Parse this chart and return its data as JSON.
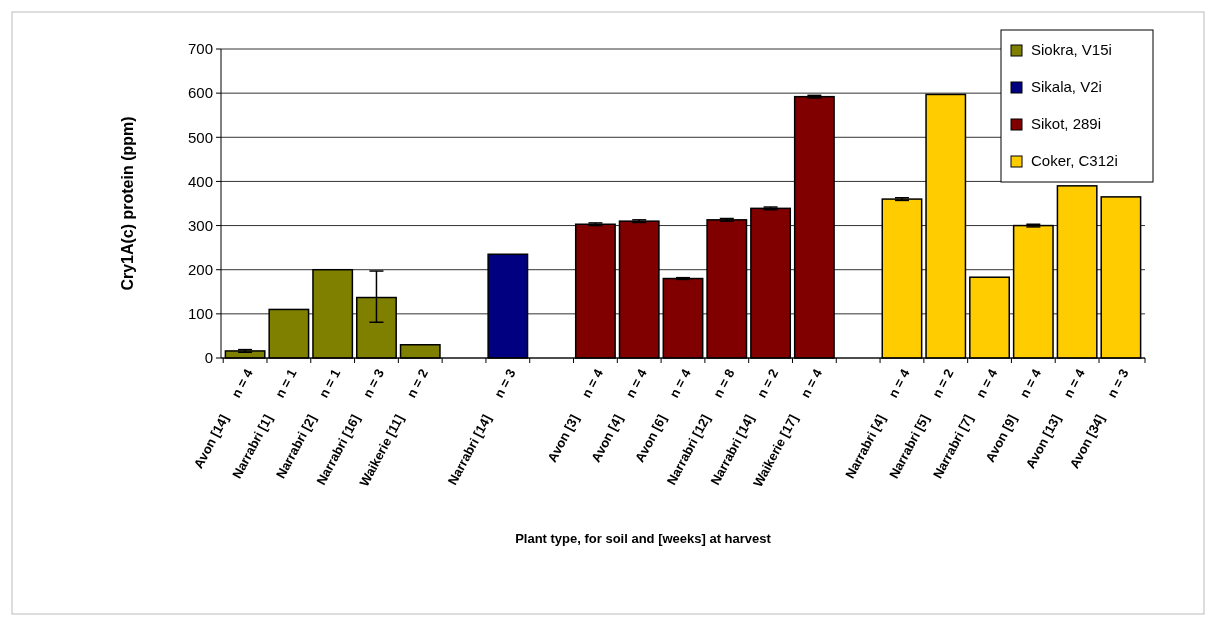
{
  "chart_data": {
    "type": "bar",
    "ylabel": "Cry1A(c) protein (ppm)",
    "xlabel": "Plant type, for soil and [weeks] at harvest",
    "categories": [
      "Avon [14]\nn = 4",
      "Narrabri [1]\nn = 1",
      "Narrabri [2]\nn = 1",
      "Narrabri [16]\nn = 3",
      "Waikerie [11]\nn = 2",
      null,
      "Narrabri [14]\nn = 3",
      null,
      "Avon [3]\nn = 4",
      "Avon [4]\nn = 4",
      "Avon [6]\nn = 4",
      "Narrabri [12]\nn = 8",
      "Narrabri [14]\nn = 2",
      "Waikerie [17]\nn = 4",
      null,
      "Narrabri [4]\nn = 4",
      "Narrabri [5]\nn = 2",
      "Narrabri [7]\nn = 4",
      "Avon [9]\nn = 4",
      "Avon [13]\nn = 4",
      "Avon [34]\nn = 3"
    ],
    "series": [
      {
        "name": "Siokra, V15i",
        "color": "#808000",
        "values": [
          16,
          110,
          200,
          137,
          30,
          null,
          null,
          null,
          null,
          null,
          null,
          null,
          null,
          null,
          null,
          null,
          null,
          null,
          null,
          null,
          null
        ],
        "errors": [
          3,
          null,
          null,
          [
            81,
            197
          ],
          null,
          null,
          null,
          null,
          null,
          null,
          null,
          null,
          null,
          null,
          null,
          null,
          null,
          null,
          null,
          null,
          null
        ]
      },
      {
        "name": "Sikala, V2i",
        "color": "#000080",
        "values": [
          null,
          null,
          null,
          null,
          null,
          null,
          235,
          null,
          null,
          null,
          null,
          null,
          null,
          null,
          null,
          null,
          null,
          null,
          null,
          null,
          null
        ]
      },
      {
        "name": "Sikot, 289i",
        "color": "#800000",
        "values": [
          null,
          null,
          null,
          null,
          null,
          null,
          null,
          null,
          303,
          310,
          180,
          313,
          339,
          592,
          null,
          null,
          null,
          null,
          null,
          null,
          null
        ],
        "errors": [
          null,
          null,
          null,
          null,
          null,
          null,
          null,
          null,
          3,
          3,
          2,
          3,
          3,
          3,
          null,
          null,
          null,
          null,
          null,
          null,
          null
        ]
      },
      {
        "name": "Coker, C312i",
        "color": "#ffcc00",
        "values": [
          null,
          null,
          null,
          null,
          null,
          null,
          null,
          null,
          null,
          null,
          null,
          null,
          null,
          null,
          null,
          360,
          597,
          183,
          300,
          390,
          365
        ],
        "errors": [
          null,
          null,
          null,
          null,
          null,
          null,
          null,
          null,
          null,
          null,
          null,
          null,
          null,
          null,
          null,
          3,
          null,
          null,
          3,
          null,
          null
        ]
      }
    ],
    "ylim": [
      0,
      700
    ],
    "yticks": [
      0,
      100,
      200,
      300,
      400,
      500,
      600,
      700
    ],
    "grid": "y",
    "legend": "top right"
  }
}
